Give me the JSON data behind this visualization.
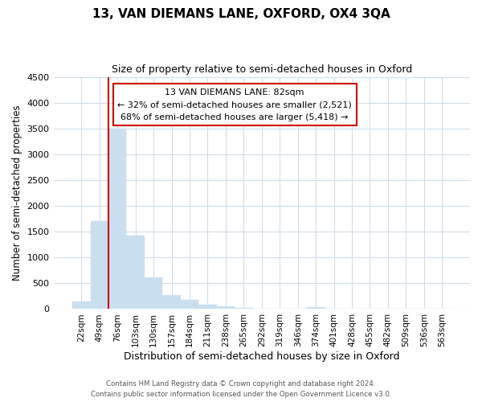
{
  "title": "13, VAN DIEMANS LANE, OXFORD, OX4 3QA",
  "subtitle": "Size of property relative to semi-detached houses in Oxford",
  "xlabel": "Distribution of semi-detached houses by size in Oxford",
  "ylabel": "Number of semi-detached properties",
  "bar_color": "#c9dff0",
  "bar_edge_color": "#c9dff0",
  "categories": [
    "22sqm",
    "49sqm",
    "76sqm",
    "103sqm",
    "130sqm",
    "157sqm",
    "184sqm",
    "211sqm",
    "238sqm",
    "265sqm",
    "292sqm",
    "319sqm",
    "346sqm",
    "374sqm",
    "401sqm",
    "428sqm",
    "455sqm",
    "482sqm",
    "509sqm",
    "536sqm",
    "563sqm"
  ],
  "values": [
    150,
    1700,
    3500,
    1430,
    620,
    270,
    175,
    90,
    55,
    20,
    10,
    5,
    3,
    40,
    0,
    0,
    0,
    0,
    0,
    0,
    0
  ],
  "ylim": [
    0,
    4500
  ],
  "yticks": [
    0,
    500,
    1000,
    1500,
    2000,
    2500,
    3000,
    3500,
    4000,
    4500
  ],
  "property_line_label": "13 VAN DIEMANS LANE: 82sqm",
  "annotation_line1": "← 32% of semi-detached houses are smaller (2,521)",
  "annotation_line2": "68% of semi-detached houses are larger (5,418) →",
  "annotation_box_color": "#ffffff",
  "annotation_box_edge": "#cc0000",
  "property_line_color": "#cc0000",
  "footer_line1": "Contains HM Land Registry data © Crown copyright and database right 2024.",
  "footer_line2": "Contains public sector information licensed under the Open Government Licence v3.0.",
  "background_color": "#ffffff",
  "grid_color": "#d0dce8",
  "title_fontsize": 11,
  "subtitle_fontsize": 9
}
